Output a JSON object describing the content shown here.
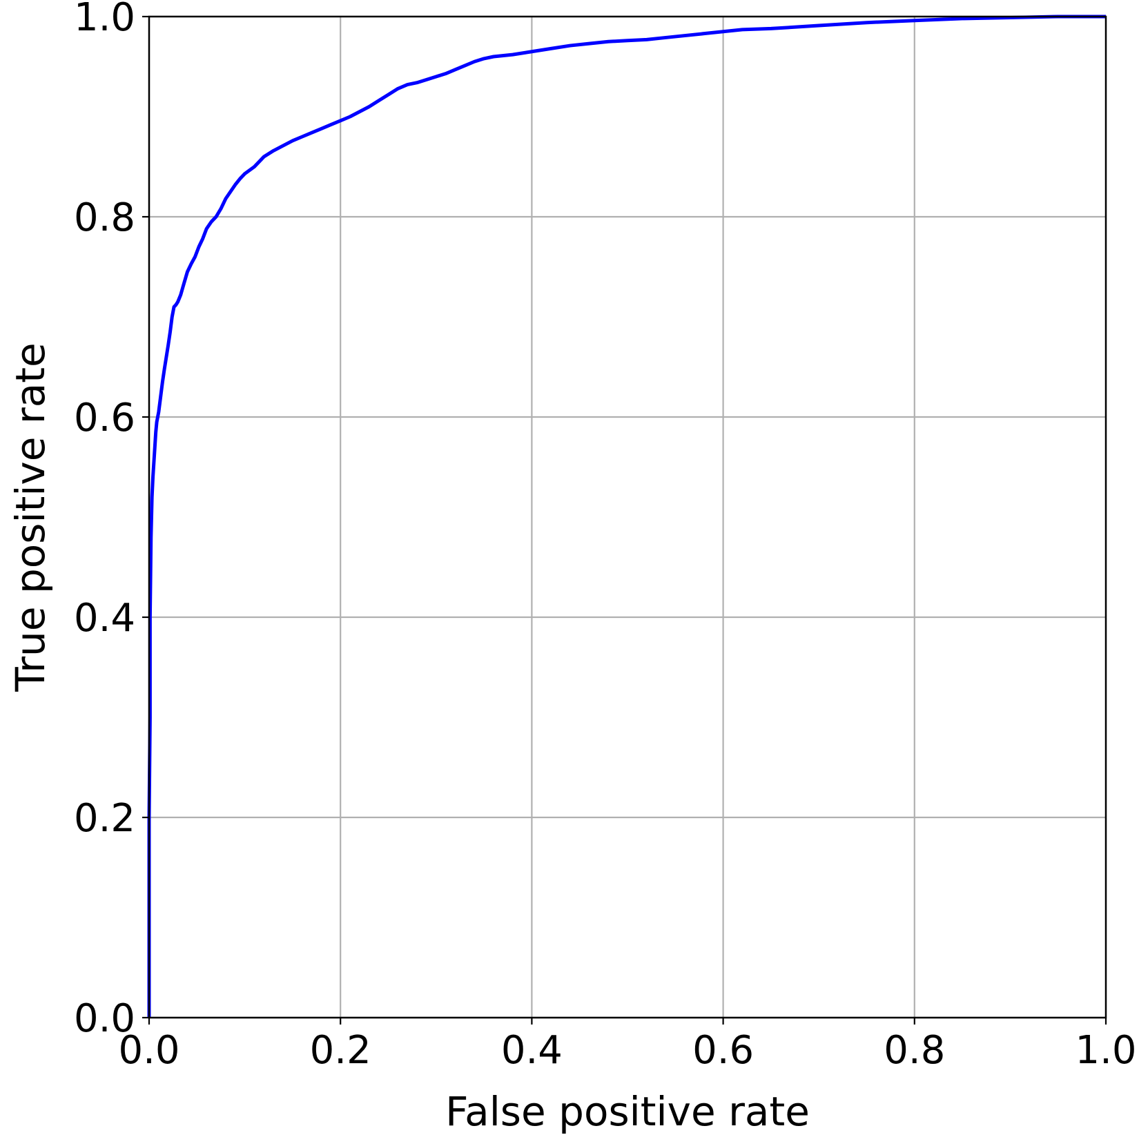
{
  "chart_data": {
    "type": "line",
    "title": "",
    "xlabel": "False positive rate",
    "ylabel": "True positive rate",
    "xlim": [
      0.0,
      1.0
    ],
    "ylim": [
      0.0,
      1.0
    ],
    "xticks": [
      "0.0",
      "0.2",
      "0.4",
      "0.6",
      "0.8",
      "1.0"
    ],
    "yticks": [
      "0.0",
      "0.2",
      "0.4",
      "0.6",
      "0.8",
      "1.0"
    ],
    "grid": true,
    "legend": "none",
    "series": [
      {
        "color": "#0000ff",
        "x": [
          0.0,
          0.0,
          0.001,
          0.001,
          0.002,
          0.003,
          0.004,
          0.005,
          0.006,
          0.007,
          0.008,
          0.01,
          0.012,
          0.014,
          0.016,
          0.018,
          0.02,
          0.022,
          0.024,
          0.026,
          0.028,
          0.03,
          0.033,
          0.036,
          0.04,
          0.044,
          0.048,
          0.052,
          0.056,
          0.06,
          0.065,
          0.07,
          0.075,
          0.08,
          0.085,
          0.09,
          0.095,
          0.1,
          0.11,
          0.12,
          0.13,
          0.14,
          0.15,
          0.16,
          0.17,
          0.18,
          0.19,
          0.2,
          0.21,
          0.22,
          0.23,
          0.24,
          0.25,
          0.26,
          0.27,
          0.28,
          0.29,
          0.3,
          0.31,
          0.32,
          0.33,
          0.34,
          0.35,
          0.36,
          0.38,
          0.4,
          0.42,
          0.44,
          0.46,
          0.48,
          0.5,
          0.52,
          0.54,
          0.56,
          0.58,
          0.6,
          0.62,
          0.65,
          0.7,
          0.75,
          0.8,
          0.85,
          0.9,
          0.95,
          1.0
        ],
        "y": [
          0.0,
          0.2,
          0.3,
          0.4,
          0.48,
          0.52,
          0.54,
          0.555,
          0.57,
          0.585,
          0.595,
          0.605,
          0.62,
          0.635,
          0.648,
          0.66,
          0.672,
          0.685,
          0.7,
          0.71,
          0.712,
          0.715,
          0.722,
          0.732,
          0.745,
          0.753,
          0.76,
          0.77,
          0.778,
          0.788,
          0.795,
          0.8,
          0.808,
          0.818,
          0.825,
          0.832,
          0.838,
          0.843,
          0.85,
          0.86,
          0.866,
          0.871,
          0.876,
          0.88,
          0.884,
          0.888,
          0.892,
          0.896,
          0.9,
          0.905,
          0.91,
          0.916,
          0.922,
          0.928,
          0.932,
          0.934,
          0.937,
          0.94,
          0.943,
          0.947,
          0.951,
          0.955,
          0.958,
          0.96,
          0.962,
          0.965,
          0.968,
          0.971,
          0.973,
          0.975,
          0.976,
          0.977,
          0.979,
          0.981,
          0.983,
          0.985,
          0.987,
          0.988,
          0.991,
          0.994,
          0.996,
          0.998,
          0.999,
          1.0,
          1.0
        ]
      }
    ]
  }
}
